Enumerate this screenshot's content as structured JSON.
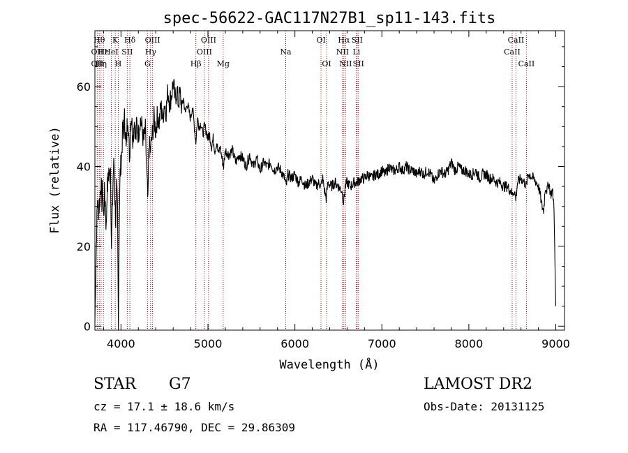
{
  "chart_data": {
    "type": "line",
    "title": "spec-56622-GAC117N27B1_sp11-143.fits",
    "xlabel": "Wavelength (Å)",
    "ylabel": "Flux (relative)",
    "xlim": [
      3700,
      9100
    ],
    "ylim": [
      -1,
      74
    ],
    "xticks": [
      4000,
      5000,
      6000,
      7000,
      8000,
      9000
    ],
    "yticks": [
      0,
      20,
      40,
      60
    ],
    "series": [
      {
        "values": [
          [
            3700,
            1
          ],
          [
            3710,
            14
          ],
          [
            3720,
            24
          ],
          [
            3730,
            32
          ],
          [
            3740,
            29
          ],
          [
            3750,
            30
          ],
          [
            3760,
            33
          ],
          [
            3770,
            36
          ],
          [
            3780,
            31
          ],
          [
            3790,
            35
          ],
          [
            3800,
            27
          ],
          [
            3810,
            33
          ],
          [
            3820,
            31
          ],
          [
            3830,
            24
          ],
          [
            3840,
            34
          ],
          [
            3850,
            36
          ],
          [
            3860,
            39
          ],
          [
            3870,
            37
          ],
          [
            3880,
            40
          ],
          [
            3890,
            20
          ],
          [
            3900,
            28
          ],
          [
            3910,
            38
          ],
          [
            3920,
            41
          ],
          [
            3930,
            32
          ],
          [
            3940,
            26
          ],
          [
            3950,
            34
          ],
          [
            3960,
            29
          ],
          [
            3970,
            1
          ],
          [
            3980,
            27
          ],
          [
            3990,
            38
          ],
          [
            4000,
            41
          ],
          [
            4010,
            44
          ],
          [
            4020,
            50
          ],
          [
            4030,
            48
          ],
          [
            4040,
            52
          ],
          [
            4050,
            49
          ],
          [
            4060,
            44
          ],
          [
            4070,
            50
          ],
          [
            4080,
            53
          ],
          [
            4090,
            46
          ],
          [
            4100,
            42
          ],
          [
            4110,
            51
          ],
          [
            4120,
            53
          ],
          [
            4130,
            49
          ],
          [
            4140,
            47
          ],
          [
            4150,
            52
          ],
          [
            4160,
            50
          ],
          [
            4170,
            46
          ],
          [
            4180,
            51
          ],
          [
            4200,
            48
          ],
          [
            4220,
            52
          ],
          [
            4240,
            50
          ],
          [
            4260,
            46
          ],
          [
            4280,
            49
          ],
          [
            4300,
            36
          ],
          [
            4310,
            30
          ],
          [
            4320,
            45
          ],
          [
            4340,
            44
          ],
          [
            4360,
            48
          ],
          [
            4380,
            52
          ],
          [
            4400,
            49
          ],
          [
            4420,
            53
          ],
          [
            4440,
            51
          ],
          [
            4460,
            55
          ],
          [
            4480,
            52
          ],
          [
            4500,
            56
          ],
          [
            4520,
            54
          ],
          [
            4540,
            59
          ],
          [
            4560,
            56
          ],
          [
            4580,
            58
          ],
          [
            4600,
            61
          ],
          [
            4620,
            57
          ],
          [
            4640,
            59
          ],
          [
            4660,
            56
          ],
          [
            4680,
            58
          ],
          [
            4700,
            55
          ],
          [
            4720,
            57
          ],
          [
            4740,
            53
          ],
          [
            4760,
            56
          ],
          [
            4780,
            54
          ],
          [
            4800,
            52
          ],
          [
            4820,
            55
          ],
          [
            4840,
            51
          ],
          [
            4860,
            46
          ],
          [
            4880,
            52
          ],
          [
            4900,
            50
          ],
          [
            4920,
            51
          ],
          [
            4940,
            48
          ],
          [
            4960,
            50
          ],
          [
            4980,
            49
          ],
          [
            5000,
            47
          ],
          [
            5020,
            48
          ],
          [
            5040,
            45
          ],
          [
            5060,
            47
          ],
          [
            5080,
            44
          ],
          [
            5100,
            46
          ],
          [
            5120,
            43
          ],
          [
            5140,
            45
          ],
          [
            5160,
            42
          ],
          [
            5180,
            40
          ],
          [
            5200,
            44
          ],
          [
            5240,
            43
          ],
          [
            5280,
            44
          ],
          [
            5320,
            41
          ],
          [
            5360,
            43
          ],
          [
            5400,
            42
          ],
          [
            5440,
            40
          ],
          [
            5480,
            43
          ],
          [
            5520,
            40
          ],
          [
            5560,
            42
          ],
          [
            5600,
            39
          ],
          [
            5640,
            41
          ],
          [
            5680,
            40
          ],
          [
            5720,
            41
          ],
          [
            5760,
            39
          ],
          [
            5800,
            40
          ],
          [
            5840,
            39
          ],
          [
            5880,
            37
          ],
          [
            5900,
            35
          ],
          [
            5920,
            38
          ],
          [
            5960,
            37
          ],
          [
            6000,
            38
          ],
          [
            6040,
            36
          ],
          [
            6080,
            37
          ],
          [
            6120,
            35
          ],
          [
            6160,
            36
          ],
          [
            6200,
            37
          ],
          [
            6240,
            35
          ],
          [
            6280,
            36
          ],
          [
            6300,
            35
          ],
          [
            6320,
            37
          ],
          [
            6340,
            34
          ],
          [
            6360,
            32
          ],
          [
            6380,
            36
          ],
          [
            6420,
            35
          ],
          [
            6460,
            36
          ],
          [
            6500,
            35
          ],
          [
            6540,
            34
          ],
          [
            6560,
            31
          ],
          [
            6580,
            35
          ],
          [
            6600,
            36
          ],
          [
            6640,
            35
          ],
          [
            6680,
            36
          ],
          [
            6720,
            36
          ],
          [
            6760,
            37
          ],
          [
            6800,
            37
          ],
          [
            6840,
            38
          ],
          [
            6880,
            37
          ],
          [
            6920,
            38
          ],
          [
            6960,
            38
          ],
          [
            7000,
            39
          ],
          [
            7040,
            38
          ],
          [
            7080,
            40
          ],
          [
            7120,
            39
          ],
          [
            7160,
            39
          ],
          [
            7200,
            40
          ],
          [
            7240,
            39
          ],
          [
            7280,
            40
          ],
          [
            7320,
            39
          ],
          [
            7360,
            39
          ],
          [
            7400,
            38
          ],
          [
            7440,
            39
          ],
          [
            7480,
            38
          ],
          [
            7520,
            39
          ],
          [
            7560,
            38
          ],
          [
            7600,
            36
          ],
          [
            7640,
            38
          ],
          [
            7680,
            39
          ],
          [
            7720,
            38
          ],
          [
            7760,
            39
          ],
          [
            7800,
            41
          ],
          [
            7840,
            39
          ],
          [
            7880,
            40
          ],
          [
            7920,
            39
          ],
          [
            7960,
            39
          ],
          [
            8000,
            38
          ],
          [
            8040,
            38
          ],
          [
            8080,
            39
          ],
          [
            8120,
            37
          ],
          [
            8160,
            38
          ],
          [
            8200,
            38
          ],
          [
            8240,
            37
          ],
          [
            8280,
            37
          ],
          [
            8320,
            36
          ],
          [
            8360,
            36
          ],
          [
            8400,
            35
          ],
          [
            8440,
            35
          ],
          [
            8480,
            34
          ],
          [
            8500,
            33
          ],
          [
            8520,
            34
          ],
          [
            8540,
            32
          ],
          [
            8560,
            36
          ],
          [
            8600,
            37
          ],
          [
            8640,
            36
          ],
          [
            8660,
            35
          ],
          [
            8680,
            38
          ],
          [
            8700,
            38
          ],
          [
            8740,
            37
          ],
          [
            8780,
            36
          ],
          [
            8800,
            35
          ],
          [
            8820,
            33
          ],
          [
            8840,
            30
          ],
          [
            8860,
            29
          ],
          [
            8880,
            35
          ],
          [
            8900,
            34
          ],
          [
            8920,
            36
          ],
          [
            8940,
            33
          ],
          [
            8960,
            34
          ],
          [
            8980,
            30
          ],
          [
            8990,
            15
          ],
          [
            9000,
            5
          ]
        ]
      }
    ],
    "lines": [
      {
        "wavelength": 3727,
        "labels": [
          "OII",
          "OII"
        ],
        "rows": [
          1,
          2
        ]
      },
      {
        "wavelength": 3750,
        "labels": [
          "Hθ"
        ],
        "rows": [
          0
        ]
      },
      {
        "wavelength": 3771,
        "labels": [
          "Hη"
        ],
        "rows": [
          2
        ]
      },
      {
        "wavelength": 3798,
        "labels": [
          "Hε"
        ],
        "rows": [
          1
        ]
      },
      {
        "wavelength": 3889,
        "labels": [
          "HeI"
        ],
        "rows": [
          1
        ]
      },
      {
        "wavelength": 3934,
        "labels": [
          "K"
        ],
        "rows": [
          0
        ]
      },
      {
        "wavelength": 3969,
        "labels": [
          "H"
        ],
        "rows": [
          2
        ]
      },
      {
        "wavelength": 4072,
        "labels": [
          "SII"
        ],
        "rows": [
          1
        ]
      },
      {
        "wavelength": 4102,
        "labels": [
          "Hδ"
        ],
        "rows": [
          0
        ]
      },
      {
        "wavelength": 4305,
        "labels": [
          "G"
        ],
        "rows": [
          2
        ]
      },
      {
        "wavelength": 4341,
        "labels": [
          "Hγ"
        ],
        "rows": [
          1
        ]
      },
      {
        "wavelength": 4363,
        "labels": [
          "OIII"
        ],
        "rows": [
          0
        ]
      },
      {
        "wavelength": 4861,
        "labels": [
          "Hβ"
        ],
        "rows": [
          2
        ]
      },
      {
        "wavelength": 4959,
        "labels": [
          "OIII"
        ],
        "rows": [
          1
        ]
      },
      {
        "wavelength": 5007,
        "labels": [
          "OIII"
        ],
        "rows": [
          0
        ]
      },
      {
        "wavelength": 5175,
        "labels": [
          "Mg"
        ],
        "rows": [
          2
        ]
      },
      {
        "wavelength": 5894,
        "labels": [
          "Na"
        ],
        "rows": [
          1
        ]
      },
      {
        "wavelength": 6300,
        "labels": [
          "OI"
        ],
        "rows": [
          0
        ]
      },
      {
        "wavelength": 6364,
        "labels": [
          "OI"
        ],
        "rows": [
          2
        ]
      },
      {
        "wavelength": 6548,
        "labels": [
          "NII"
        ],
        "rows": [
          1
        ]
      },
      {
        "wavelength": 6563,
        "labels": [
          "Hα"
        ],
        "rows": [
          0
        ]
      },
      {
        "wavelength": 6583,
        "labels": [
          "NII"
        ],
        "rows": [
          2
        ]
      },
      {
        "wavelength": 6707,
        "labels": [
          "Li"
        ],
        "rows": [
          1
        ]
      },
      {
        "wavelength": 6716,
        "labels": [
          "SII"
        ],
        "rows": [
          0
        ]
      },
      {
        "wavelength": 6731,
        "labels": [
          "SII"
        ],
        "rows": [
          2
        ]
      },
      {
        "wavelength": 8498,
        "labels": [
          "CaII"
        ],
        "rows": [
          1
        ]
      },
      {
        "wavelength": 8542,
        "labels": [
          "CaII"
        ],
        "rows": [
          0
        ]
      },
      {
        "wavelength": 8662,
        "labels": [
          "CaII"
        ],
        "rows": [
          2
        ]
      }
    ],
    "colors": {
      "spectrum": "#000000",
      "lines": "#8b0000"
    }
  },
  "info": {
    "class": "STAR",
    "subclass": "G7",
    "survey": "LAMOST DR2",
    "cz": "cz = 17.1 ± 18.6 km/s",
    "obsdate": "Obs-Date: 20131125",
    "coords": "RA = 117.46790, DEC =  29.86309"
  }
}
